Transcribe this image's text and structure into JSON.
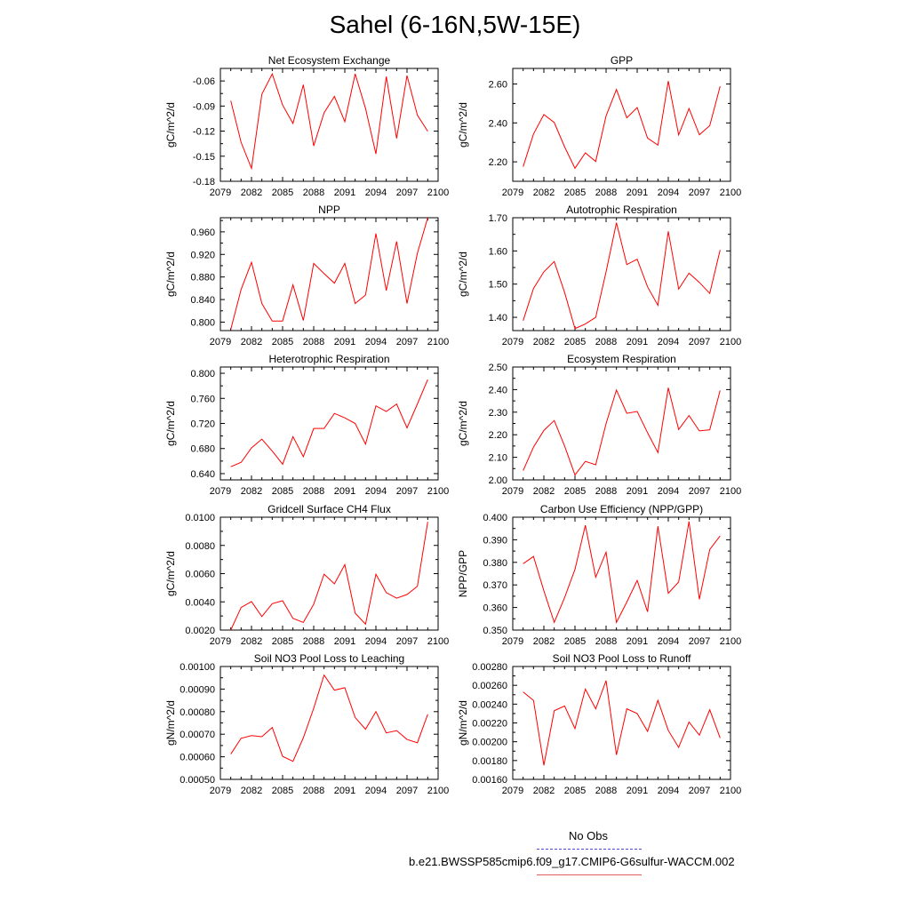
{
  "title": "Sahel (6-16N,5W-15E)",
  "legend": {
    "obs_label": "No Obs",
    "model_label": "b.e21.BWSSP585cmip6.f09_g17.CMIP6-G6sulfur-WACCM.002",
    "obs_color": "#4a4adf",
    "model_color": "#e06060"
  },
  "chart_data": [
    {
      "type": "line",
      "title": "Net Ecosystem Exchange",
      "ylabel": "gC/m^2/d",
      "ylim": [
        -0.18,
        -0.045
      ],
      "yticks": [
        -0.18,
        -0.15,
        -0.12,
        -0.09,
        -0.06
      ],
      "ytick_labels": [
        "-0.18",
        "-0.15",
        "-0.12",
        "-0.09",
        "-0.06"
      ],
      "xlim": [
        2079,
        2100
      ],
      "xticks": [
        2079,
        2082,
        2085,
        2088,
        2091,
        2094,
        2097,
        2100
      ],
      "xtick_labels": [
        "2079",
        "2082",
        "2085",
        "2088",
        "2091",
        "2094",
        "2097",
        "2100"
      ],
      "x": [
        2080,
        2081,
        2082,
        2083,
        2084,
        2085,
        2086,
        2087,
        2088,
        2089,
        2090,
        2091,
        2092,
        2093,
        2094,
        2095,
        2096,
        2097,
        2098,
        2099
      ],
      "series": [
        {
          "color": "#ff0000",
          "values": [
            -0.0836,
            -0.1335,
            -0.1645,
            -0.0758,
            -0.0515,
            -0.0888,
            -0.1108,
            -0.0645,
            -0.1377,
            -0.0981,
            -0.0785,
            -0.1087,
            -0.0515,
            -0.0929,
            -0.1472,
            -0.0547,
            -0.1288,
            -0.0536,
            -0.1008,
            -0.1202
          ]
        }
      ]
    },
    {
      "type": "line",
      "title": "GPP",
      "ylabel": "gC/m^2/d",
      "ylim": [
        2.1,
        2.68
      ],
      "yticks": [
        2.2,
        2.4,
        2.6
      ],
      "ytick_labels": [
        "2.20",
        "2.40",
        "2.60"
      ],
      "xlim": [
        2079,
        2100
      ],
      "xticks": [
        2079,
        2082,
        2085,
        2088,
        2091,
        2094,
        2097,
        2100
      ],
      "xtick_labels": [
        "2079",
        "2082",
        "2085",
        "2088",
        "2091",
        "2094",
        "2097",
        "2100"
      ],
      "x": [
        2080,
        2081,
        2082,
        2083,
        2084,
        2085,
        2086,
        2087,
        2088,
        2089,
        2090,
        2091,
        2092,
        2093,
        2094,
        2095,
        2096,
        2097,
        2098,
        2099
      ],
      "series": [
        {
          "color": "#ff0000",
          "values": [
            2.175,
            2.343,
            2.443,
            2.402,
            2.277,
            2.167,
            2.246,
            2.202,
            2.436,
            2.572,
            2.426,
            2.479,
            2.322,
            2.286,
            2.615,
            2.338,
            2.474,
            2.339,
            2.386,
            2.588
          ]
        }
      ]
    },
    {
      "type": "line",
      "title": "NPP",
      "ylabel": "gC/m^2/d",
      "ylim": [
        0.785,
        0.985
      ],
      "yticks": [
        0.8,
        0.84,
        0.88,
        0.92,
        0.96
      ],
      "ytick_labels": [
        "0.800",
        "0.840",
        "0.880",
        "0.920",
        "0.960"
      ],
      "xlim": [
        2079,
        2100
      ],
      "xticks": [
        2079,
        2082,
        2085,
        2088,
        2091,
        2094,
        2097,
        2100
      ],
      "xtick_labels": [
        "2079",
        "2082",
        "2085",
        "2088",
        "2091",
        "2094",
        "2097",
        "2100"
      ],
      "x": [
        2080,
        2081,
        2082,
        2083,
        2084,
        2085,
        2086,
        2087,
        2088,
        2089,
        2090,
        2091,
        2092,
        2093,
        2094,
        2095,
        2096,
        2097,
        2098,
        2099
      ],
      "series": [
        {
          "color": "#ff0000",
          "values": [
            0.787,
            0.858,
            0.906,
            0.833,
            0.802,
            0.802,
            0.866,
            0.803,
            0.904,
            0.886,
            0.869,
            0.904,
            0.833,
            0.848,
            0.957,
            0.856,
            0.943,
            0.833,
            0.922,
            0.985
          ]
        }
      ]
    },
    {
      "type": "line",
      "title": "Autotrophic Respiration",
      "ylabel": "gC/m^2/d",
      "ylim": [
        1.36,
        1.7
      ],
      "yticks": [
        1.4,
        1.5,
        1.6,
        1.7
      ],
      "ytick_labels": [
        "1.40",
        "1.50",
        "1.60",
        "1.70"
      ],
      "xlim": [
        2079,
        2100
      ],
      "xticks": [
        2079,
        2082,
        2085,
        2088,
        2091,
        2094,
        2097,
        2100
      ],
      "xtick_labels": [
        "2079",
        "2082",
        "2085",
        "2088",
        "2091",
        "2094",
        "2097",
        "2100"
      ],
      "x": [
        2080,
        2081,
        2082,
        2083,
        2084,
        2085,
        2086,
        2087,
        2088,
        2089,
        2090,
        2091,
        2092,
        2093,
        2094,
        2095,
        2096,
        2097,
        2098,
        2099
      ],
      "series": [
        {
          "color": "#ff0000",
          "values": [
            1.39,
            1.487,
            1.537,
            1.568,
            1.475,
            1.366,
            1.38,
            1.4,
            1.537,
            1.685,
            1.559,
            1.575,
            1.492,
            1.436,
            1.659,
            1.485,
            1.533,
            1.505,
            1.472,
            1.603
          ]
        }
      ]
    },
    {
      "type": "line",
      "title": "Heterotrophic Respiration",
      "ylabel": "gC/m^2/d",
      "ylim": [
        0.63,
        0.81
      ],
      "yticks": [
        0.64,
        0.68,
        0.72,
        0.76,
        0.8
      ],
      "ytick_labels": [
        "0.640",
        "0.680",
        "0.720",
        "0.760",
        "0.800"
      ],
      "xlim": [
        2079,
        2100
      ],
      "xticks": [
        2079,
        2082,
        2085,
        2088,
        2091,
        2094,
        2097,
        2100
      ],
      "xtick_labels": [
        "2079",
        "2082",
        "2085",
        "2088",
        "2091",
        "2094",
        "2097",
        "2100"
      ],
      "x": [
        2080,
        2081,
        2082,
        2083,
        2084,
        2085,
        2086,
        2087,
        2088,
        2089,
        2090,
        2091,
        2092,
        2093,
        2094,
        2095,
        2096,
        2097,
        2098,
        2099
      ],
      "series": [
        {
          "color": "#ff0000",
          "values": [
            0.651,
            0.658,
            0.681,
            0.695,
            0.676,
            0.655,
            0.699,
            0.667,
            0.712,
            0.712,
            0.736,
            0.729,
            0.72,
            0.687,
            0.748,
            0.739,
            0.751,
            0.713,
            0.751,
            0.79
          ]
        }
      ]
    },
    {
      "type": "line",
      "title": "Ecosystem Respiration",
      "ylabel": "gC/m^2/d",
      "ylim": [
        2.0,
        2.5
      ],
      "yticks": [
        2.0,
        2.1,
        2.2,
        2.3,
        2.4,
        2.5
      ],
      "ytick_labels": [
        "2.00",
        "2.10",
        "2.20",
        "2.30",
        "2.40",
        "2.50"
      ],
      "xlim": [
        2079,
        2100
      ],
      "xticks": [
        2079,
        2082,
        2085,
        2088,
        2091,
        2094,
        2097,
        2100
      ],
      "xtick_labels": [
        "2079",
        "2082",
        "2085",
        "2088",
        "2091",
        "2094",
        "2097",
        "2100"
      ],
      "x": [
        2080,
        2081,
        2082,
        2083,
        2084,
        2085,
        2086,
        2087,
        2088,
        2089,
        2090,
        2091,
        2092,
        2093,
        2094,
        2095,
        2096,
        2097,
        2098,
        2099
      ],
      "series": [
        {
          "color": "#ff0000",
          "values": [
            2.041,
            2.145,
            2.219,
            2.263,
            2.15,
            2.022,
            2.082,
            2.067,
            2.249,
            2.398,
            2.295,
            2.303,
            2.209,
            2.121,
            2.408,
            2.223,
            2.285,
            2.217,
            2.222,
            2.396
          ]
        }
      ]
    },
    {
      "type": "line",
      "title": "Gridcell Surface CH4 Flux",
      "ylabel": "gC/m^2/d",
      "ylim": [
        0.002,
        0.01
      ],
      "yticks": [
        0.002,
        0.004,
        0.006,
        0.008,
        0.01
      ],
      "ytick_labels": [
        "0.0020",
        "0.0040",
        "0.0060",
        "0.0080",
        "0.0100"
      ],
      "xlim": [
        2079,
        2100
      ],
      "xticks": [
        2079,
        2082,
        2085,
        2088,
        2091,
        2094,
        2097,
        2100
      ],
      "xtick_labels": [
        "2079",
        "2082",
        "2085",
        "2088",
        "2091",
        "2094",
        "2097",
        "2100"
      ],
      "x": [
        2080,
        2081,
        2082,
        2083,
        2084,
        2085,
        2086,
        2087,
        2088,
        2089,
        2090,
        2091,
        2092,
        2093,
        2094,
        2095,
        2096,
        2097,
        2098,
        2099
      ],
      "series": [
        {
          "color": "#ff0000",
          "values": [
            0.002,
            0.0036,
            0.00402,
            0.00296,
            0.00387,
            0.00408,
            0.00283,
            0.00254,
            0.00383,
            0.00596,
            0.00528,
            0.00664,
            0.0032,
            0.00242,
            0.00596,
            0.00465,
            0.00426,
            0.00452,
            0.0051,
            0.00967
          ]
        }
      ]
    },
    {
      "type": "line",
      "title": "Carbon Use Efficiency (NPP/GPP)",
      "ylabel": "NPP/GPP",
      "ylim": [
        0.35,
        0.4
      ],
      "yticks": [
        0.35,
        0.36,
        0.37,
        0.38,
        0.39,
        0.4
      ],
      "ytick_labels": [
        "0.350",
        "0.360",
        "0.370",
        "0.380",
        "0.390",
        "0.400"
      ],
      "xlim": [
        2079,
        2100
      ],
      "xticks": [
        2079,
        2082,
        2085,
        2088,
        2091,
        2094,
        2097,
        2100
      ],
      "xtick_labels": [
        "2079",
        "2082",
        "2085",
        "2088",
        "2091",
        "2094",
        "2097",
        "2100"
      ],
      "x": [
        2080,
        2081,
        2082,
        2083,
        2084,
        2085,
        2086,
        2087,
        2088,
        2089,
        2090,
        2091,
        2092,
        2093,
        2094,
        2095,
        2096,
        2097,
        2098,
        2099
      ],
      "series": [
        {
          "color": "#ff0000",
          "values": [
            0.3794,
            0.3826,
            0.3674,
            0.3534,
            0.3644,
            0.3769,
            0.3964,
            0.3734,
            0.3845,
            0.3534,
            0.3624,
            0.372,
            0.3581,
            0.396,
            0.3663,
            0.3713,
            0.3981,
            0.3636,
            0.3857,
            0.3917
          ]
        }
      ]
    },
    {
      "type": "line",
      "title": "Soil NO3 Pool Loss to Leaching",
      "ylabel": "gN/m^2/d",
      "ylim": [
        0.0005,
        0.001
      ],
      "yticks": [
        0.0005,
        0.0006,
        0.0007,
        0.0008,
        0.0009,
        0.001
      ],
      "ytick_labels": [
        "0.00050",
        "0.00060",
        "0.00070",
        "0.00080",
        "0.00090",
        "0.00100"
      ],
      "xlim": [
        2079,
        2100
      ],
      "xticks": [
        2079,
        2082,
        2085,
        2088,
        2091,
        2094,
        2097,
        2100
      ],
      "xtick_labels": [
        "2079",
        "2082",
        "2085",
        "2088",
        "2091",
        "2094",
        "2097",
        "2100"
      ],
      "x": [
        2080,
        2081,
        2082,
        2083,
        2084,
        2085,
        2086,
        2087,
        2088,
        2089,
        2090,
        2091,
        2092,
        2093,
        2094,
        2095,
        2096,
        2097,
        2098,
        2099
      ],
      "series": [
        {
          "color": "#ff0000",
          "values": [
            0.000612,
            0.000682,
            0.000694,
            0.000689,
            0.00073,
            0.000602,
            0.00058,
            0.000684,
            0.000815,
            0.000962,
            0.000895,
            0.000906,
            0.000774,
            0.000722,
            0.0008,
            0.000706,
            0.000716,
            0.000677,
            0.000662,
            0.000788
          ]
        }
      ]
    },
    {
      "type": "line",
      "title": "Soil NO3 Pool Loss to Runoff",
      "ylabel": "gN/m^2/d",
      "ylim": [
        0.0016,
        0.0028
      ],
      "yticks": [
        0.0016,
        0.0018,
        0.002,
        0.0022,
        0.0024,
        0.0026,
        0.0028
      ],
      "ytick_labels": [
        "0.00160",
        "0.00180",
        "0.00200",
        "0.00220",
        "0.00240",
        "0.00260",
        "0.00280"
      ],
      "xlim": [
        2079,
        2100
      ],
      "xticks": [
        2079,
        2082,
        2085,
        2088,
        2091,
        2094,
        2097,
        2100
      ],
      "xtick_labels": [
        "2079",
        "2082",
        "2085",
        "2088",
        "2091",
        "2094",
        "2097",
        "2100"
      ],
      "x": [
        2080,
        2081,
        2082,
        2083,
        2084,
        2085,
        2086,
        2087,
        2088,
        2089,
        2090,
        2091,
        2092,
        2093,
        2094,
        2095,
        2096,
        2097,
        2098,
        2099
      ],
      "series": [
        {
          "color": "#ff0000",
          "values": [
            0.00253,
            0.00244,
            0.00175,
            0.00233,
            0.00238,
            0.00214,
            0.00256,
            0.00235,
            0.00265,
            0.00186,
            0.00235,
            0.0023,
            0.00211,
            0.00244,
            0.00212,
            0.00194,
            0.00221,
            0.00207,
            0.00234,
            0.00204
          ]
        }
      ]
    }
  ]
}
